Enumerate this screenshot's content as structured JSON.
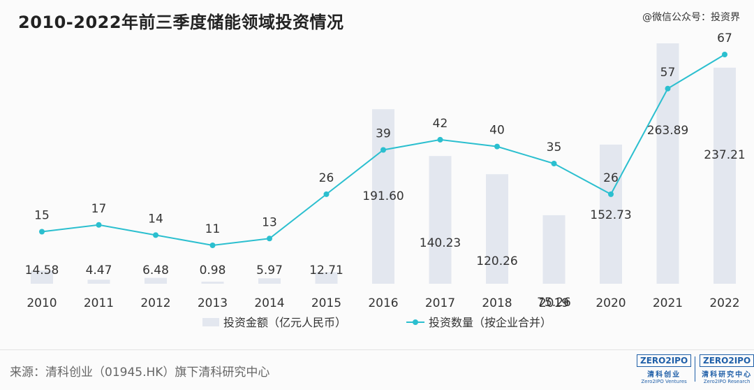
{
  "title": "2010-2022年前三季度储能领域投资情况",
  "watermark": "@微信公众号：投资界",
  "source": "来源：清科创业（01945.HK）旗下清科研究中心",
  "logos": [
    {
      "mark": "ZERO2IPO",
      "cn": "清科创业",
      "en": "Zero2IPO Ventures"
    },
    {
      "mark": "ZERO2IPO",
      "cn": "清科研究中心",
      "en": "Zero2IPO Research"
    }
  ],
  "colors": {
    "bar": "#e3e7ef",
    "line": "#2bbfcf",
    "text": "#333333"
  },
  "chart_data": {
    "type": "bar+line",
    "categories": [
      "2010",
      "2011",
      "2012",
      "2013",
      "2014",
      "2015",
      "2016",
      "2017",
      "2018",
      "2019",
      "2020",
      "2021",
      "2022"
    ],
    "series": [
      {
        "name": "投资金额（亿元人民币）",
        "type": "bar",
        "values": [
          14.58,
          4.47,
          6.48,
          0.98,
          5.97,
          12.71,
          191.6,
          140.23,
          120.26,
          75.26,
          152.73,
          263.89,
          237.21
        ],
        "labels": [
          "14.58",
          "4.47",
          "6.48",
          "0.98",
          "5.97",
          "12.71",
          "191.60",
          "140.23",
          "120.26",
          "75.26",
          "152.73",
          "263.89",
          "237.21"
        ]
      },
      {
        "name": "投资数量（按企业合并）",
        "type": "line",
        "values": [
          15,
          17,
          14,
          11,
          13,
          26,
          39,
          42,
          40,
          35,
          26,
          57,
          67
        ],
        "labels": [
          "15",
          "17",
          "14",
          "11",
          "13",
          "26",
          "39",
          "42",
          "40",
          "35",
          "26",
          "57",
          "67"
        ]
      }
    ],
    "legend_position": "bottom",
    "grid": false
  }
}
